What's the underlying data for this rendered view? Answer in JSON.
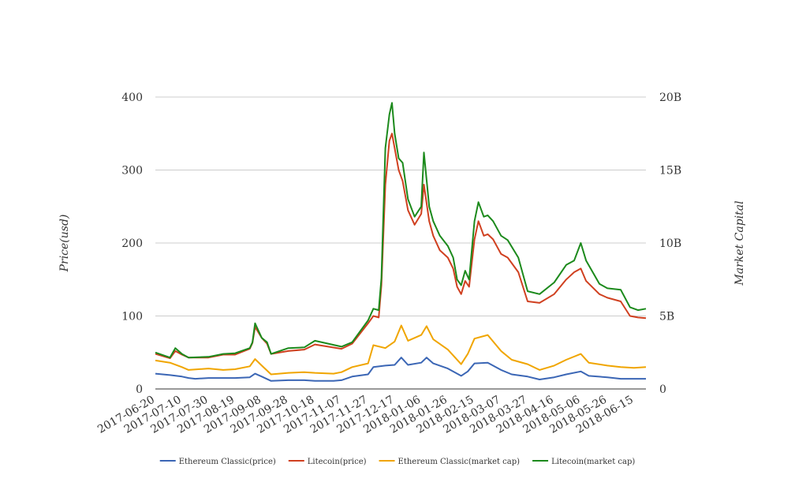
{
  "chart_data": {
    "type": "line",
    "title": "",
    "ylabel": "Price(usd)",
    "y2label": "Market Capital",
    "ylim": [
      0,
      400
    ],
    "y2lim": [
      0,
      20000000000
    ],
    "yticks": [
      "0",
      "100",
      "200",
      "300",
      "400"
    ],
    "y2ticks": [
      "0",
      "5B",
      "10B",
      "15B",
      "20B"
    ],
    "xlim": [
      "2017-06-20",
      "2018-06-24"
    ],
    "xticks": [
      "2017-06-20",
      "2017-07-10",
      "2017-07-30",
      "2017-08-19",
      "2017-09-08",
      "2017-09-28",
      "2017-10-18",
      "2017-11-07",
      "2017-11-27",
      "2017-12-17",
      "2018-01-06",
      "2018-01-26",
      "2018-02-15",
      "2018-03-07",
      "2018-03-27",
      "2018-04-16",
      "2018-05-06",
      "2018-05-26",
      "2018-06-15"
    ],
    "grid": true,
    "legend_position": "bottom",
    "series": [
      {
        "name": "Ethereum Classic(price)",
        "color": "#3b66b5",
        "axis": "left",
        "points": [
          [
            "2017-06-20",
            21
          ],
          [
            "2017-07-01",
            19
          ],
          [
            "2017-07-10",
            17
          ],
          [
            "2017-07-15",
            15
          ],
          [
            "2017-07-20",
            14
          ],
          [
            "2017-07-30",
            15
          ],
          [
            "2017-08-10",
            15
          ],
          [
            "2017-08-19",
            15
          ],
          [
            "2017-08-30",
            16
          ],
          [
            "2017-09-03",
            21
          ],
          [
            "2017-09-08",
            17
          ],
          [
            "2017-09-15",
            11
          ],
          [
            "2017-09-28",
            12
          ],
          [
            "2017-10-10",
            12
          ],
          [
            "2017-10-18",
            11
          ],
          [
            "2017-11-01",
            11
          ],
          [
            "2017-11-07",
            12
          ],
          [
            "2017-11-15",
            17
          ],
          [
            "2017-11-27",
            20
          ],
          [
            "2017-12-01",
            30
          ],
          [
            "2017-12-10",
            32
          ],
          [
            "2017-12-17",
            33
          ],
          [
            "2017-12-22",
            43
          ],
          [
            "2017-12-27",
            33
          ],
          [
            "2018-01-06",
            36
          ],
          [
            "2018-01-10",
            43
          ],
          [
            "2018-01-15",
            35
          ],
          [
            "2018-01-26",
            28
          ],
          [
            "2018-02-05",
            18
          ],
          [
            "2018-02-10",
            24
          ],
          [
            "2018-02-15",
            35
          ],
          [
            "2018-02-25",
            36
          ],
          [
            "2018-03-07",
            26
          ],
          [
            "2018-03-15",
            20
          ],
          [
            "2018-03-27",
            17
          ],
          [
            "2018-04-05",
            13
          ],
          [
            "2018-04-16",
            16
          ],
          [
            "2018-04-25",
            20
          ],
          [
            "2018-05-06",
            24
          ],
          [
            "2018-05-12",
            18
          ],
          [
            "2018-05-26",
            16
          ],
          [
            "2018-06-05",
            14
          ],
          [
            "2018-06-15",
            14
          ],
          [
            "2018-06-24",
            14
          ]
        ]
      },
      {
        "name": "Litecoin(price)",
        "color": "#d04020",
        "axis": "left",
        "points": [
          [
            "2017-06-20",
            48
          ],
          [
            "2017-07-01",
            42
          ],
          [
            "2017-07-05",
            52
          ],
          [
            "2017-07-10",
            47
          ],
          [
            "2017-07-15",
            43
          ],
          [
            "2017-07-30",
            43
          ],
          [
            "2017-08-10",
            47
          ],
          [
            "2017-08-19",
            47
          ],
          [
            "2017-08-30",
            55
          ],
          [
            "2017-09-01",
            63
          ],
          [
            "2017-09-03",
            85
          ],
          [
            "2017-09-08",
            70
          ],
          [
            "2017-09-12",
            62
          ],
          [
            "2017-09-15",
            48
          ],
          [
            "2017-09-28",
            52
          ],
          [
            "2017-10-10",
            54
          ],
          [
            "2017-10-18",
            61
          ],
          [
            "2017-11-07",
            55
          ],
          [
            "2017-11-15",
            62
          ],
          [
            "2017-11-27",
            90
          ],
          [
            "2017-12-01",
            100
          ],
          [
            "2017-12-05",
            98
          ],
          [
            "2017-12-07",
            142
          ],
          [
            "2017-12-10",
            280
          ],
          [
            "2017-12-13",
            340
          ],
          [
            "2017-12-15",
            350
          ],
          [
            "2017-12-17",
            330
          ],
          [
            "2017-12-20",
            300
          ],
          [
            "2017-12-23",
            285
          ],
          [
            "2017-12-27",
            245
          ],
          [
            "2018-01-01",
            225
          ],
          [
            "2018-01-06",
            240
          ],
          [
            "2018-01-08",
            280
          ],
          [
            "2018-01-12",
            230
          ],
          [
            "2018-01-15",
            210
          ],
          [
            "2018-01-20",
            190
          ],
          [
            "2018-01-26",
            180
          ],
          [
            "2018-01-30",
            165
          ],
          [
            "2018-02-02",
            140
          ],
          [
            "2018-02-05",
            130
          ],
          [
            "2018-02-08",
            148
          ],
          [
            "2018-02-11",
            140
          ],
          [
            "2018-02-15",
            205
          ],
          [
            "2018-02-18",
            230
          ],
          [
            "2018-02-22",
            210
          ],
          [
            "2018-02-25",
            212
          ],
          [
            "2018-03-01",
            205
          ],
          [
            "2018-03-07",
            185
          ],
          [
            "2018-03-12",
            180
          ],
          [
            "2018-03-20",
            160
          ],
          [
            "2018-03-27",
            120
          ],
          [
            "2018-04-05",
            118
          ],
          [
            "2018-04-16",
            130
          ],
          [
            "2018-04-25",
            150
          ],
          [
            "2018-05-01",
            160
          ],
          [
            "2018-05-06",
            165
          ],
          [
            "2018-05-10",
            148
          ],
          [
            "2018-05-20",
            130
          ],
          [
            "2018-05-26",
            125
          ],
          [
            "2018-06-05",
            120
          ],
          [
            "2018-06-12",
            100
          ],
          [
            "2018-06-18",
            98
          ],
          [
            "2018-06-24",
            97
          ]
        ]
      },
      {
        "name": "Ethereum Classic(market cap)",
        "color": "#f0a500",
        "axis": "right",
        "points": [
          [
            "2017-06-20",
            1950000000
          ],
          [
            "2017-07-01",
            1800000000
          ],
          [
            "2017-07-10",
            1500000000
          ],
          [
            "2017-07-15",
            1300000000
          ],
          [
            "2017-07-30",
            1400000000
          ],
          [
            "2017-08-10",
            1300000000
          ],
          [
            "2017-08-19",
            1350000000
          ],
          [
            "2017-08-30",
            1550000000
          ],
          [
            "2017-09-03",
            2050000000
          ],
          [
            "2017-09-08",
            1600000000
          ],
          [
            "2017-09-15",
            1000000000
          ],
          [
            "2017-09-28",
            1100000000
          ],
          [
            "2017-10-10",
            1150000000
          ],
          [
            "2017-10-18",
            1100000000
          ],
          [
            "2017-11-01",
            1050000000
          ],
          [
            "2017-11-07",
            1150000000
          ],
          [
            "2017-11-15",
            1500000000
          ],
          [
            "2017-11-27",
            1750000000
          ],
          [
            "2017-12-01",
            3000000000
          ],
          [
            "2017-12-10",
            2800000000
          ],
          [
            "2017-12-17",
            3250000000
          ],
          [
            "2017-12-22",
            4350000000
          ],
          [
            "2017-12-27",
            3300000000
          ],
          [
            "2018-01-06",
            3700000000
          ],
          [
            "2018-01-10",
            4300000000
          ],
          [
            "2018-01-15",
            3400000000
          ],
          [
            "2018-01-26",
            2700000000
          ],
          [
            "2018-02-05",
            1700000000
          ],
          [
            "2018-02-10",
            2400000000
          ],
          [
            "2018-02-15",
            3450000000
          ],
          [
            "2018-02-25",
            3700000000
          ],
          [
            "2018-03-07",
            2600000000
          ],
          [
            "2018-03-15",
            2000000000
          ],
          [
            "2018-03-27",
            1700000000
          ],
          [
            "2018-04-05",
            1300000000
          ],
          [
            "2018-04-16",
            1600000000
          ],
          [
            "2018-04-25",
            2000000000
          ],
          [
            "2018-05-06",
            2400000000
          ],
          [
            "2018-05-12",
            1800000000
          ],
          [
            "2018-05-26",
            1600000000
          ],
          [
            "2018-06-05",
            1500000000
          ],
          [
            "2018-06-15",
            1450000000
          ],
          [
            "2018-06-24",
            1500000000
          ]
        ]
      },
      {
        "name": "Litecoin(market cap)",
        "color": "#1c8a1c",
        "axis": "right",
        "points": [
          [
            "2017-06-20",
            2500000000
          ],
          [
            "2017-07-01",
            2150000000
          ],
          [
            "2017-07-05",
            2800000000
          ],
          [
            "2017-07-10",
            2400000000
          ],
          [
            "2017-07-15",
            2150000000
          ],
          [
            "2017-07-30",
            2200000000
          ],
          [
            "2017-08-10",
            2400000000
          ],
          [
            "2017-08-19",
            2450000000
          ],
          [
            "2017-08-30",
            2800000000
          ],
          [
            "2017-09-01",
            3200000000
          ],
          [
            "2017-09-03",
            4500000000
          ],
          [
            "2017-09-08",
            3500000000
          ],
          [
            "2017-09-12",
            3200000000
          ],
          [
            "2017-09-15",
            2400000000
          ],
          [
            "2017-09-28",
            2800000000
          ],
          [
            "2017-10-10",
            2850000000
          ],
          [
            "2017-10-18",
            3300000000
          ],
          [
            "2017-11-07",
            2900000000
          ],
          [
            "2017-11-15",
            3200000000
          ],
          [
            "2017-11-27",
            4700000000
          ],
          [
            "2017-12-01",
            5500000000
          ],
          [
            "2017-12-05",
            5400000000
          ],
          [
            "2017-12-07",
            7600000000
          ],
          [
            "2017-12-10",
            16500000000
          ],
          [
            "2017-12-13",
            18800000000
          ],
          [
            "2017-12-15",
            19600000000
          ],
          [
            "2017-12-17",
            17500000000
          ],
          [
            "2017-12-20",
            15800000000
          ],
          [
            "2017-12-23",
            15500000000
          ],
          [
            "2017-12-27",
            13000000000
          ],
          [
            "2018-01-01",
            11800000000
          ],
          [
            "2018-01-06",
            12500000000
          ],
          [
            "2018-01-08",
            16200000000
          ],
          [
            "2018-01-12",
            12500000000
          ],
          [
            "2018-01-15",
            11500000000
          ],
          [
            "2018-01-20",
            10500000000
          ],
          [
            "2018-01-26",
            9800000000
          ],
          [
            "2018-01-30",
            9000000000
          ],
          [
            "2018-02-02",
            7500000000
          ],
          [
            "2018-02-05",
            7100000000
          ],
          [
            "2018-02-08",
            8100000000
          ],
          [
            "2018-02-11",
            7500000000
          ],
          [
            "2018-02-15",
            11500000000
          ],
          [
            "2018-02-18",
            12800000000
          ],
          [
            "2018-02-22",
            11800000000
          ],
          [
            "2018-02-25",
            11900000000
          ],
          [
            "2018-03-01",
            11500000000
          ],
          [
            "2018-03-07",
            10500000000
          ],
          [
            "2018-03-12",
            10200000000
          ],
          [
            "2018-03-20",
            9000000000
          ],
          [
            "2018-03-27",
            6700000000
          ],
          [
            "2018-04-05",
            6500000000
          ],
          [
            "2018-04-16",
            7300000000
          ],
          [
            "2018-04-25",
            8500000000
          ],
          [
            "2018-05-01",
            8800000000
          ],
          [
            "2018-05-06",
            10000000000
          ],
          [
            "2018-05-10",
            8800000000
          ],
          [
            "2018-05-20",
            7200000000
          ],
          [
            "2018-05-26",
            6900000000
          ],
          [
            "2018-06-05",
            6800000000
          ],
          [
            "2018-06-12",
            5600000000
          ],
          [
            "2018-06-18",
            5400000000
          ],
          [
            "2018-06-24",
            5500000000
          ]
        ]
      }
    ]
  }
}
